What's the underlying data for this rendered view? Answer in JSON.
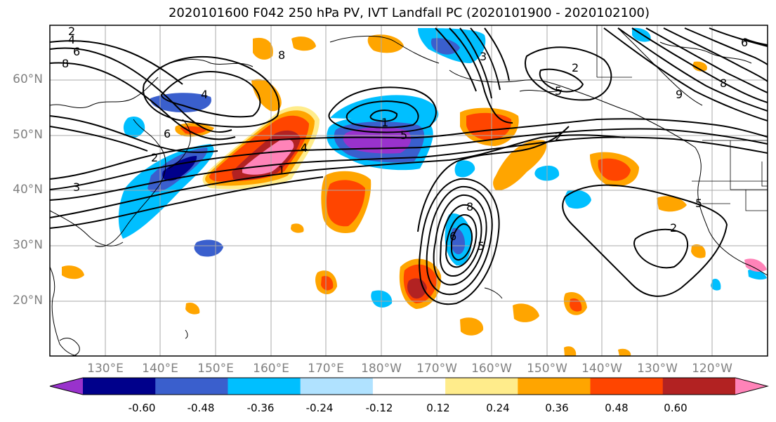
{
  "title": "2020101600 F042 250 hPa PV, IVT Landfall PC (2020101900 - 2020102100)",
  "lat_labels": [
    "60°N",
    "50°N",
    "40°N",
    "30°N",
    "20°N"
  ],
  "lon_labels": [
    "130°E",
    "140°E",
    "150°E",
    "160°E",
    "170°E",
    "180°W",
    "170°W",
    "160°W",
    "150°W",
    "140°W",
    "130°W",
    "120°W"
  ],
  "colorbar": {
    "tick_labels": [
      "-0.60",
      "-0.48",
      "-0.36",
      "-0.24",
      "-0.12",
      "0.12",
      "0.24",
      "0.36",
      "0.48",
      "0.60"
    ],
    "colors": [
      "#9932cc",
      "#00008b",
      "#3a5fcd",
      "#00bfff",
      "#b0e2ff",
      "#ffffff",
      "#ffec8b",
      "#ffa500",
      "#ff4500",
      "#b22222",
      "#ff83b8"
    ]
  },
  "contour_labels": [
    "2",
    "4",
    "6",
    "8",
    "4",
    "6",
    "8",
    "2",
    "1",
    "4",
    "5",
    "1",
    "3",
    "8",
    "2",
    "5",
    "6",
    "9",
    "2",
    "6",
    "8",
    "2",
    "3",
    "5",
    "5"
  ]
}
